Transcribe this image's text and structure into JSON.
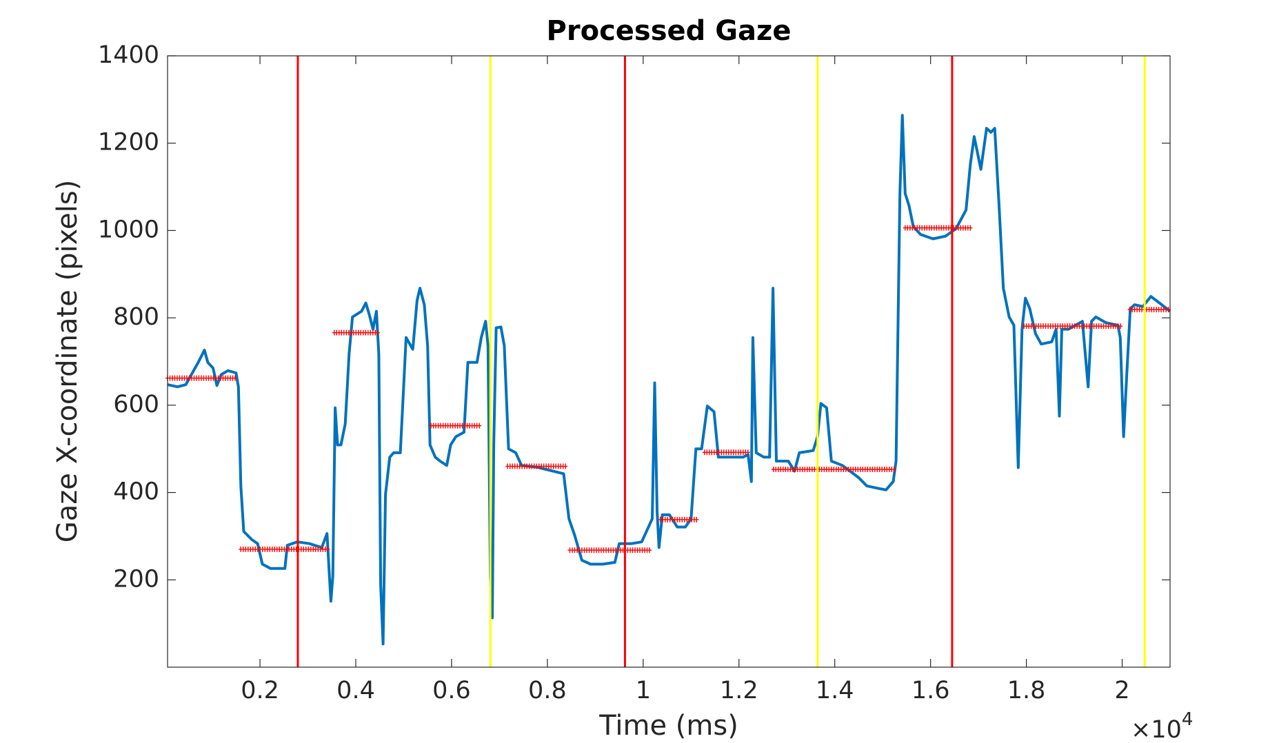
{
  "chart_data": {
    "type": "line",
    "title": "Processed Gaze",
    "x_label": "Time (ms)",
    "y_label": "Gaze X-coordinate (pixels)",
    "x_multiplier": {
      "base": "×10",
      "exponent": "4"
    },
    "xlim": [
      0.007,
      2.1
    ],
    "ylim": [
      0,
      1400
    ],
    "xticks": [
      0.2,
      0.4,
      0.6,
      0.8,
      1,
      1.2,
      1.4,
      1.6,
      1.8,
      2
    ],
    "yticks": [
      200,
      400,
      600,
      800,
      1000,
      1200,
      1400
    ],
    "series": [
      {
        "color": "#0072bd",
        "x": [
          0.007,
          0.028,
          0.045,
          0.071,
          0.084,
          0.091,
          0.102,
          0.11,
          0.119,
          0.133,
          0.15,
          0.155,
          0.16,
          0.166,
          0.183,
          0.195,
          0.205,
          0.222,
          0.252,
          0.257,
          0.278,
          0.303,
          0.329,
          0.34,
          0.345,
          0.348,
          0.352,
          0.357,
          0.362,
          0.369,
          0.378,
          0.386,
          0.393,
          0.412,
          0.421,
          0.428,
          0.436,
          0.443,
          0.448,
          0.452,
          0.457,
          0.462,
          0.471,
          0.479,
          0.493,
          0.505,
          0.519,
          0.528,
          0.534,
          0.543,
          0.55,
          0.555,
          0.566,
          0.576,
          0.59,
          0.598,
          0.609,
          0.626,
          0.634,
          0.653,
          0.662,
          0.671,
          0.676,
          0.681,
          0.685,
          0.688,
          0.693,
          0.703,
          0.71,
          0.719,
          0.734,
          0.746,
          0.778,
          0.834,
          0.845,
          0.857,
          0.872,
          0.89,
          0.916,
          0.941,
          0.95,
          0.976,
          0.997,
          1.019,
          1.024,
          1.029,
          1.033,
          1.04,
          1.055,
          1.071,
          1.088,
          1.1,
          1.11,
          1.122,
          1.134,
          1.148,
          1.157,
          1.174,
          1.209,
          1.219,
          1.226,
          1.229,
          1.236,
          1.252,
          1.264,
          1.271,
          1.278,
          1.303,
          1.316,
          1.326,
          1.355,
          1.364,
          1.371,
          1.383,
          1.393,
          1.416,
          1.45,
          1.467,
          1.484,
          1.507,
          1.522,
          1.528,
          1.536,
          1.541,
          1.547,
          1.555,
          1.564,
          1.579,
          1.605,
          1.631,
          1.653,
          1.674,
          1.683,
          1.691,
          1.705,
          1.717,
          1.726,
          1.734,
          1.743,
          1.752,
          1.764,
          1.774,
          1.783,
          1.791,
          1.798,
          1.807,
          1.819,
          1.831,
          1.853,
          1.862,
          1.869,
          1.874,
          1.888,
          1.917,
          1.929,
          1.936,
          1.945,
          1.966,
          1.991,
          1.996,
          2.003,
          2.01,
          2.017,
          2.026,
          2.043,
          2.06,
          2.078,
          2.1
        ],
        "values": [
          647,
          642,
          647,
          698,
          726,
          698,
          685,
          645,
          670,
          679,
          674,
          642,
          415,
          311,
          292,
          283,
          236,
          226,
          226,
          279,
          287,
          283,
          274,
          306,
          208,
          151,
          208,
          594,
          509,
          509,
          557,
          717,
          802,
          815,
          834,
          808,
          774,
          815,
          717,
          189,
          53,
          396,
          481,
          491,
          491,
          755,
          728,
          840,
          868,
          830,
          736,
          509,
          481,
          472,
          462,
          509,
          528,
          538,
          698,
          698,
          755,
          792,
          736,
          208,
          113,
          509,
          777,
          779,
          736,
          500,
          491,
          462,
          458,
          443,
          340,
          302,
          245,
          236,
          236,
          240,
          283,
          283,
          287,
          340,
          651,
          358,
          274,
          349,
          349,
          321,
          321,
          340,
          500,
          500,
          598,
          585,
          481,
          481,
          481,
          487,
          425,
          755,
          491,
          481,
          481,
          868,
          472,
          472,
          449,
          491,
          496,
          528,
          604,
          594,
          472,
          462,
          434,
          415,
          411,
          406,
          425,
          472,
          1085,
          1264,
          1085,
          1057,
          1009,
          991,
          981,
          987,
          1004,
          1047,
          1151,
          1215,
          1140,
          1234,
          1225,
          1234,
          1057,
          868,
          802,
          783,
          457,
          774,
          845,
          821,
          764,
          740,
          745,
          774,
          575,
          774,
          774,
          792,
          642,
          792,
          802,
          789,
          783,
          755,
          528,
          679,
          821,
          830,
          826,
          849,
          834,
          815
        ]
      }
    ],
    "fixations": {
      "color": "#ff0000",
      "segments": [
        {
          "x": [
            0.007,
            0.152
          ],
          "y": 662
        },
        {
          "x": [
            0.16,
            0.343
          ],
          "y": 270
        },
        {
          "x": [
            0.355,
            0.447
          ],
          "y": 766
        },
        {
          "x": [
            0.557,
            0.659
          ],
          "y": 553
        },
        {
          "x": [
            0.717,
            0.841
          ],
          "y": 460
        },
        {
          "x": [
            0.847,
            1.016
          ],
          "y": 268
        },
        {
          "x": [
            1.036,
            1.114
          ],
          "y": 338
        },
        {
          "x": [
            1.128,
            1.222
          ],
          "y": 492
        },
        {
          "x": [
            1.272,
            1.528
          ],
          "y": 453
        },
        {
          "x": [
            1.547,
            1.684
          ],
          "y": 1006
        },
        {
          "x": [
            1.795,
            1.998
          ],
          "y": 781
        },
        {
          "x": [
            2.016,
            2.1
          ],
          "y": 819
        }
      ]
    },
    "vlines": [
      {
        "x": 0.279,
        "color": "#ff0000"
      },
      {
        "x": 0.681,
        "color": "#ffff00"
      },
      {
        "x": 0.962,
        "color": "#ff0000"
      },
      {
        "x": 1.364,
        "color": "#ffff00"
      },
      {
        "x": 1.645,
        "color": "#ff0000"
      },
      {
        "x": 2.047,
        "color": "#ffff00"
      }
    ]
  }
}
